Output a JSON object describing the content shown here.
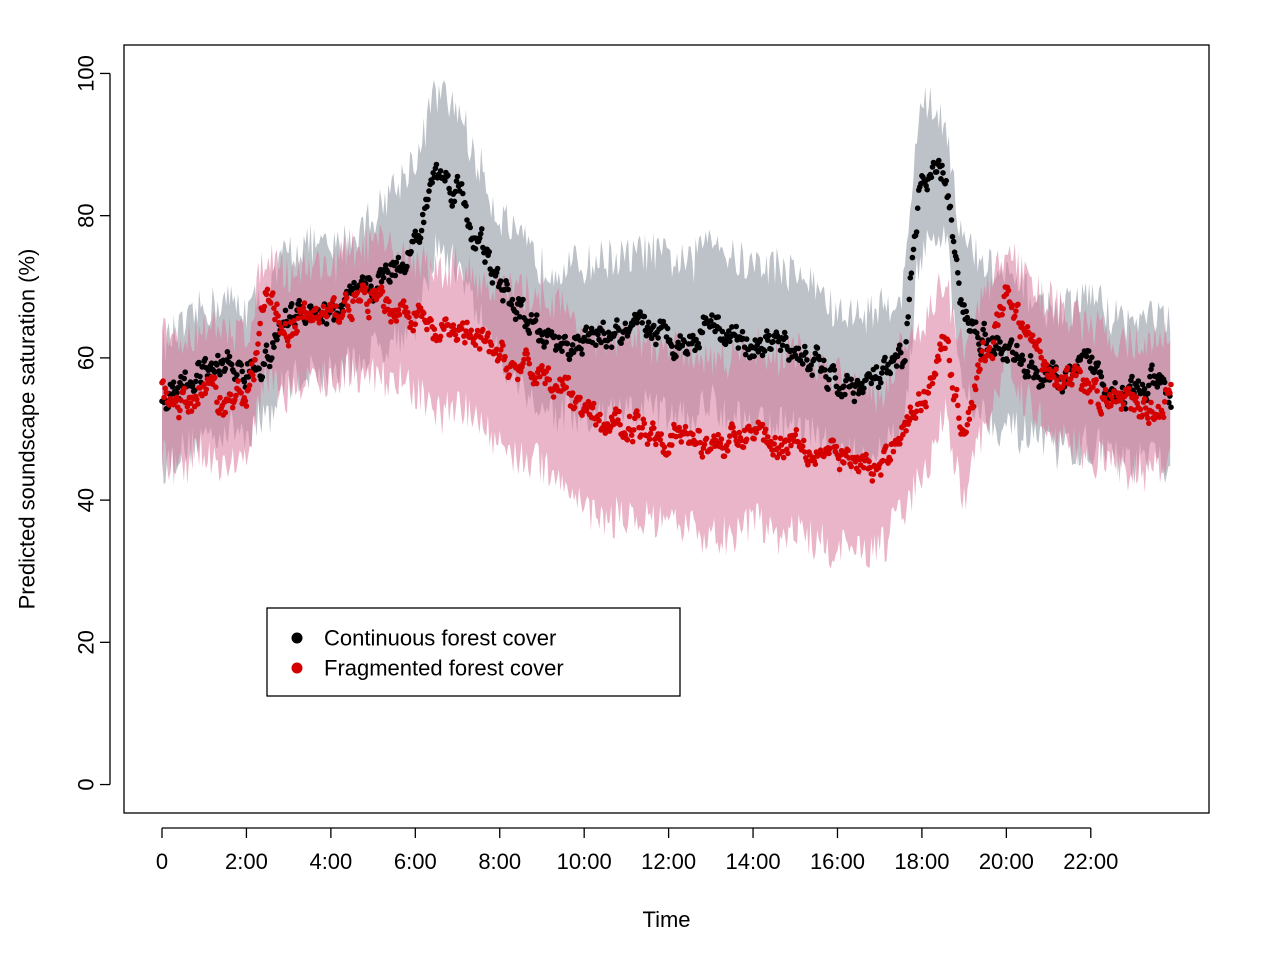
{
  "chart_data": {
    "type": "scatter",
    "title": "",
    "xlabel": "Time",
    "ylabel": "Predicted soundscape saturation (%)",
    "xlim": [
      -0.9,
      24.8
    ],
    "ylim": [
      -4,
      104
    ],
    "x_ticks": [
      {
        "value": 0,
        "label": "0"
      },
      {
        "value": 2,
        "label": "2:00"
      },
      {
        "value": 4,
        "label": "4:00"
      },
      {
        "value": 6,
        "label": "6:00"
      },
      {
        "value": 8,
        "label": "8:00"
      },
      {
        "value": 10,
        "label": "10:00"
      },
      {
        "value": 12,
        "label": "12:00"
      },
      {
        "value": 14,
        "label": "14:00"
      },
      {
        "value": 16,
        "label": "16:00"
      },
      {
        "value": 18,
        "label": "18:00"
      },
      {
        "value": 20,
        "label": "20:00"
      },
      {
        "value": 22,
        "label": "22:00"
      }
    ],
    "y_ticks": [
      0,
      20,
      40,
      60,
      80,
      100
    ],
    "grid": false,
    "legend_position": "bottom-left",
    "x": [
      0,
      0.5,
      1,
      1.5,
      2,
      2.5,
      3,
      3.5,
      4,
      4.5,
      5,
      5.5,
      6,
      6.5,
      7,
      7.5,
      8,
      8.5,
      9,
      9.5,
      10,
      10.5,
      11,
      11.5,
      12,
      12.5,
      13,
      13.5,
      14,
      14.5,
      15,
      15.5,
      16,
      16.5,
      17,
      17.5,
      18,
      18.5,
      19,
      19.5,
      20,
      20.5,
      21,
      21.5,
      22,
      22.5,
      23,
      23.5,
      24
    ],
    "series": [
      {
        "name": "Continuous forest cover",
        "color": "#000000",
        "band_color": "#9aa1ab",
        "values": [
          54,
          56,
          58,
          59,
          58,
          60,
          66,
          67,
          66,
          68,
          70,
          73,
          76,
          86,
          84,
          76,
          70,
          66,
          63,
          62,
          62,
          63,
          63,
          64,
          63,
          62,
          66,
          63,
          62,
          62,
          61,
          59,
          56,
          56,
          57,
          59,
          84,
          86,
          66,
          63,
          61,
          59,
          57,
          57,
          59,
          56,
          55,
          56,
          54
        ],
        "band_low": [
          45,
          47,
          49,
          50,
          50,
          52,
          57,
          58,
          58,
          59,
          61,
          63,
          65,
          75,
          73,
          66,
          60,
          56,
          53,
          52,
          51,
          52,
          52,
          53,
          52,
          51,
          54,
          52,
          51,
          51,
          50,
          49,
          46,
          46,
          47,
          49,
          75,
          77,
          56,
          52,
          50,
          49,
          47,
          47,
          48,
          46,
          45,
          46,
          44
        ],
        "band_high": [
          62,
          64,
          67,
          68,
          67,
          69,
          75,
          76,
          75,
          77,
          80,
          84,
          88,
          97,
          95,
          87,
          80,
          76,
          73,
          73,
          73,
          74,
          74,
          75,
          74,
          73,
          78,
          74,
          73,
          73,
          72,
          70,
          66,
          66,
          67,
          69,
          96,
          94,
          76,
          73,
          71,
          69,
          67,
          67,
          69,
          66,
          65,
          66,
          64
        ]
      },
      {
        "name": "Fragmented forest cover",
        "color": "#d40000",
        "band_color": "#d9799b",
        "values": [
          55,
          53,
          56,
          54,
          55,
          68,
          64,
          66,
          66,
          68,
          68,
          67,
          66,
          63,
          64,
          62,
          60,
          58,
          58,
          56,
          52,
          50,
          51,
          50,
          49,
          49,
          48,
          48,
          50,
          48,
          49,
          47,
          46,
          45,
          44,
          50,
          54,
          62,
          51,
          60,
          68,
          63,
          59,
          57,
          55,
          54,
          53,
          53,
          55
        ],
        "band_low": [
          46,
          44,
          47,
          45,
          46,
          58,
          55,
          57,
          57,
          58,
          58,
          57,
          55,
          52,
          53,
          51,
          48,
          46,
          45,
          43,
          39,
          37,
          38,
          37,
          36,
          36,
          35,
          35,
          37,
          35,
          36,
          34,
          33,
          33,
          33,
          38,
          43,
          52,
          41,
          50,
          59,
          54,
          50,
          48,
          46,
          45,
          44,
          44,
          46
        ],
        "band_high": [
          63,
          62,
          65,
          63,
          64,
          75,
          72,
          73,
          73,
          75,
          76,
          75,
          74,
          72,
          73,
          71,
          70,
          69,
          69,
          67,
          64,
          62,
          63,
          62,
          61,
          61,
          60,
          60,
          62,
          60,
          61,
          59,
          58,
          57,
          55,
          61,
          65,
          70,
          61,
          69,
          75,
          71,
          68,
          66,
          64,
          63,
          62,
          62,
          64
        ]
      }
    ]
  }
}
